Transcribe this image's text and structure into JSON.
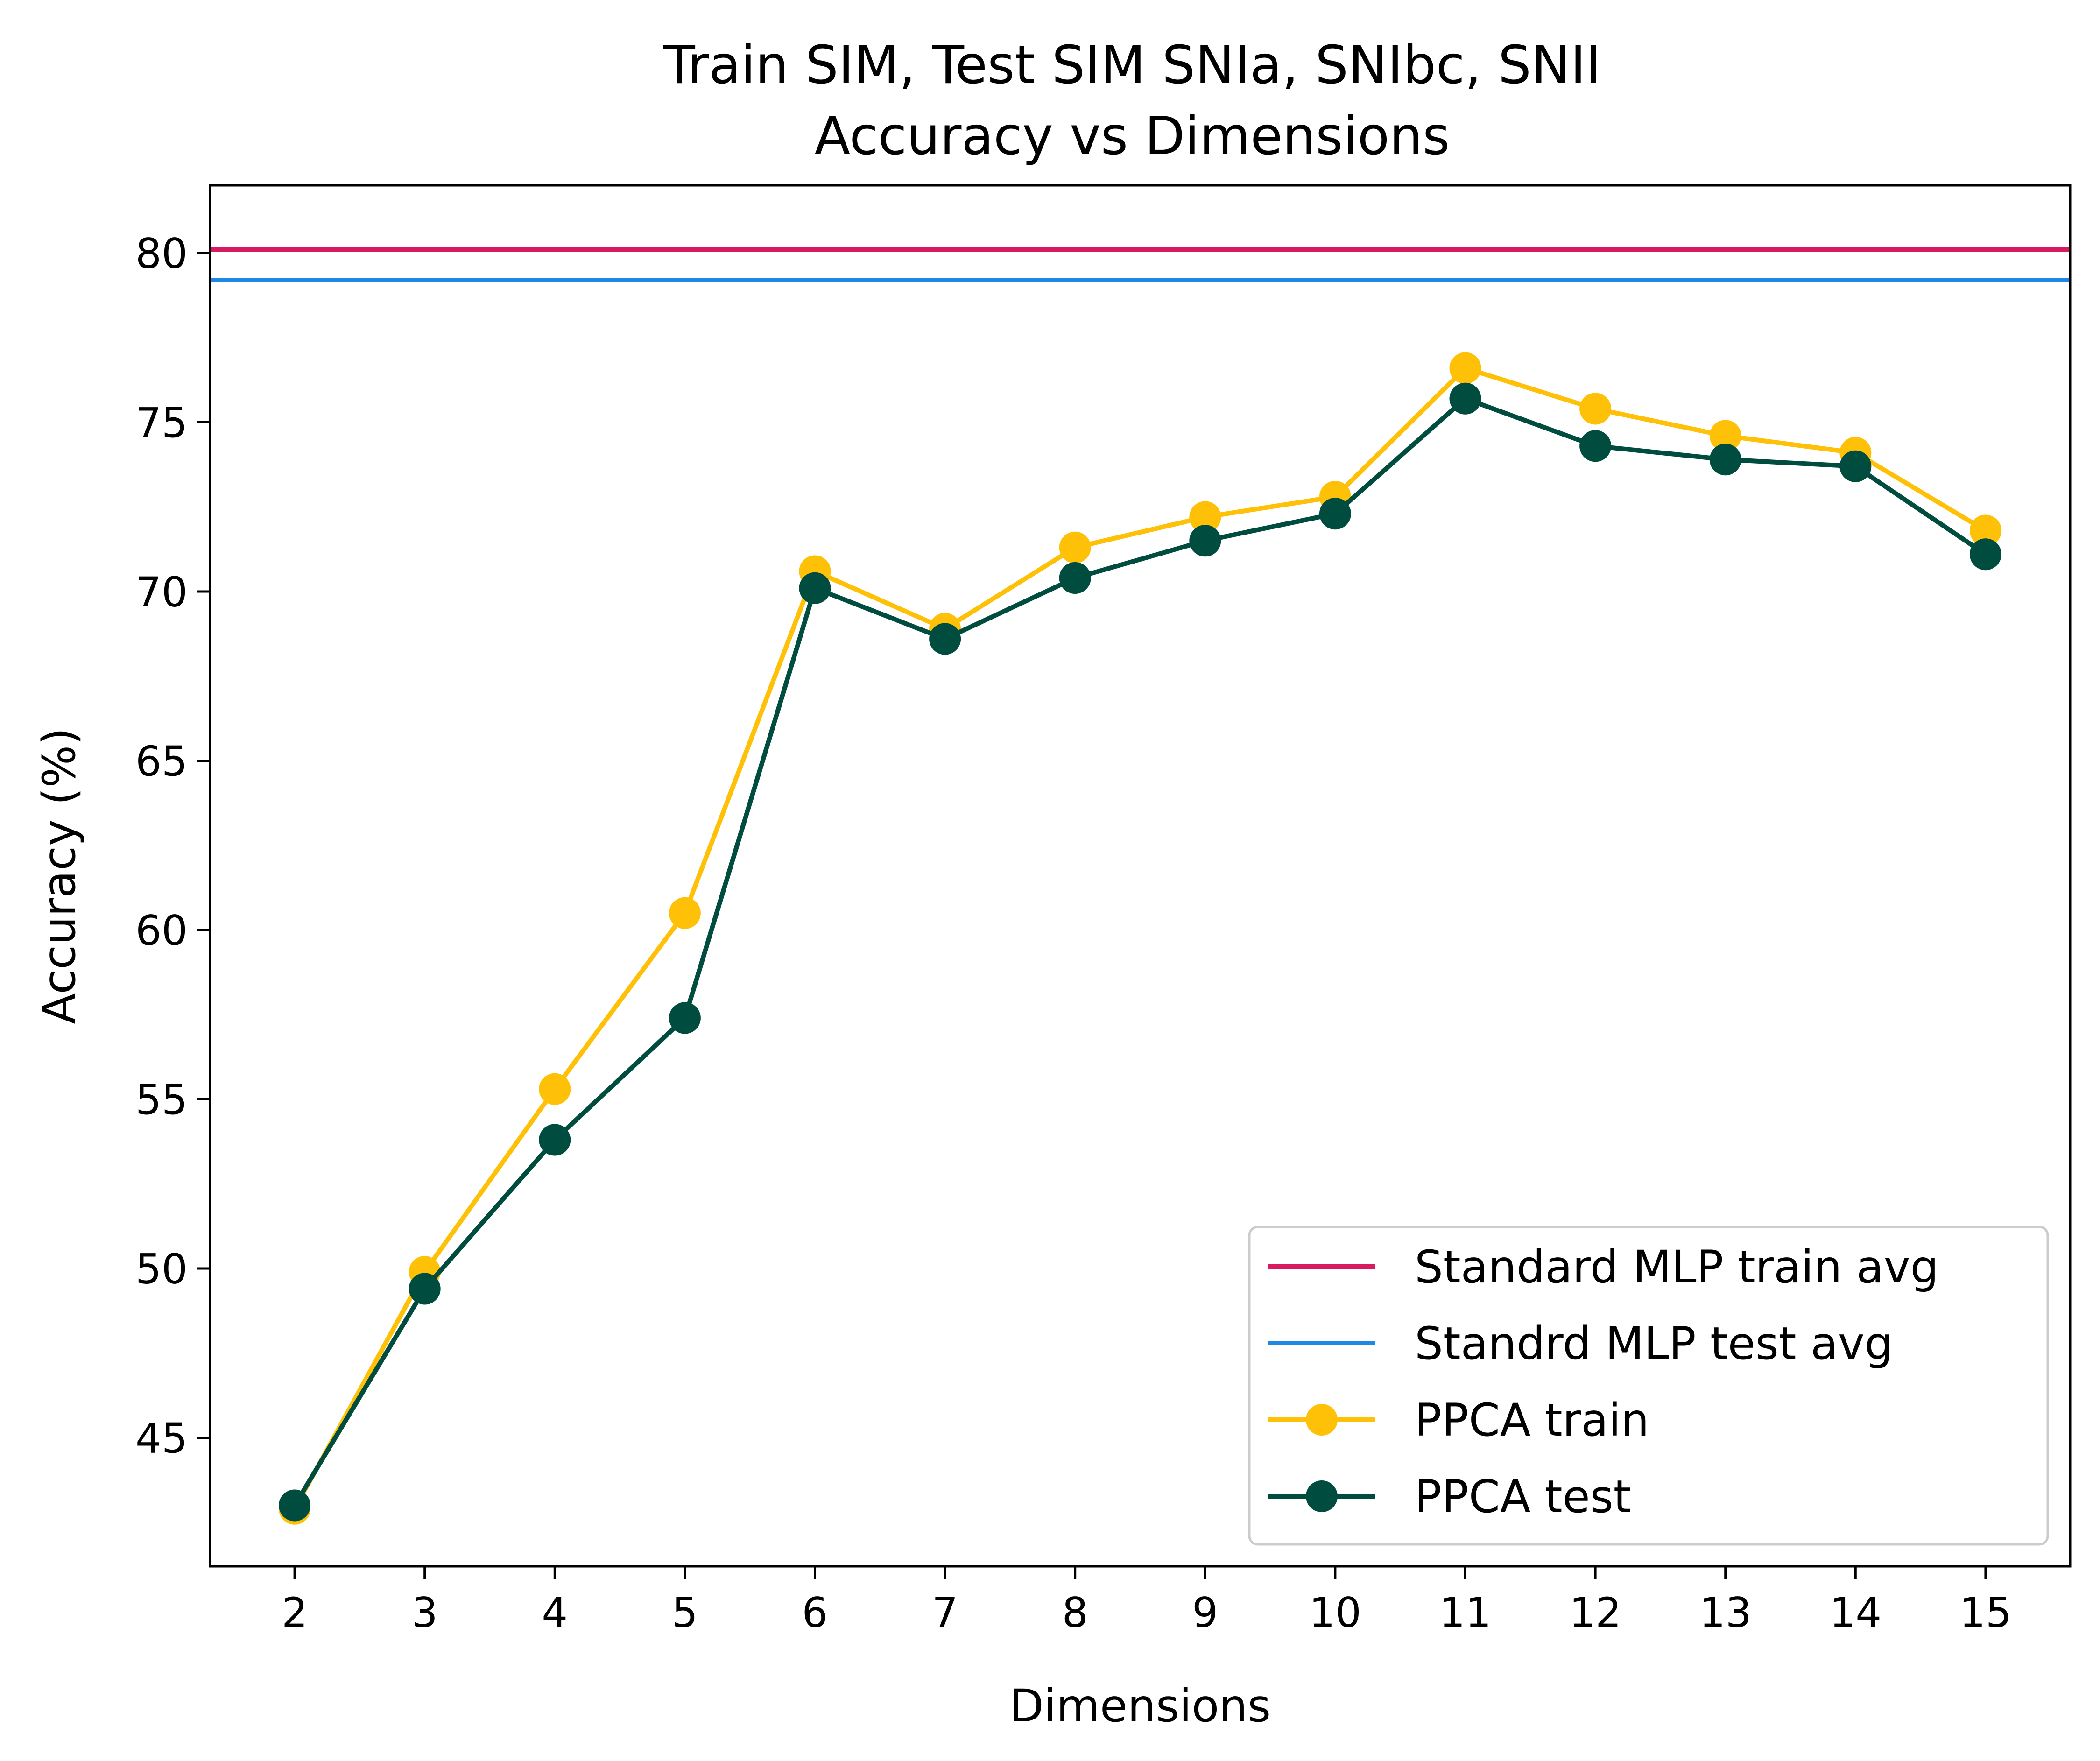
{
  "chart_data": {
    "type": "line",
    "title": "Train SIM, Test SIM SNIa, SNIbc, SNII",
    "subtitle": "Accuracy vs Dimensions",
    "xlabel": "Dimensions",
    "ylabel": "Accuracy (%)",
    "xlim": [
      1.35,
      15.65
    ],
    "ylim": [
      41.2,
      82.0
    ],
    "x": [
      2,
      3,
      4,
      5,
      6,
      7,
      8,
      9,
      10,
      11,
      12,
      13,
      14,
      15
    ],
    "x_ticks": [
      2,
      3,
      4,
      5,
      6,
      7,
      8,
      9,
      10,
      11,
      12,
      13,
      14,
      15
    ],
    "y_ticks": [
      45,
      50,
      55,
      60,
      65,
      70,
      75,
      80
    ],
    "grid": false,
    "legend_position": "lower-right",
    "hlines": [
      {
        "name": "Standard MLP train avg",
        "y": 80.1,
        "color": "#d81b60"
      },
      {
        "name": "Standrd MLP test avg",
        "y": 79.2,
        "color": "#1e88e5"
      }
    ],
    "series": [
      {
        "name": "PPCA train",
        "color": "#ffc107",
        "marker": "circle",
        "values": [
          42.9,
          49.9,
          55.3,
          60.5,
          70.6,
          68.9,
          71.3,
          72.2,
          72.8,
          76.6,
          75.4,
          74.6,
          74.1,
          71.8
        ]
      },
      {
        "name": "PPCA test",
        "color": "#004d40",
        "marker": "circle",
        "values": [
          43.0,
          49.4,
          53.8,
          57.4,
          70.1,
          68.6,
          70.4,
          71.5,
          72.3,
          75.7,
          74.3,
          73.9,
          73.7,
          71.1
        ]
      }
    ]
  }
}
